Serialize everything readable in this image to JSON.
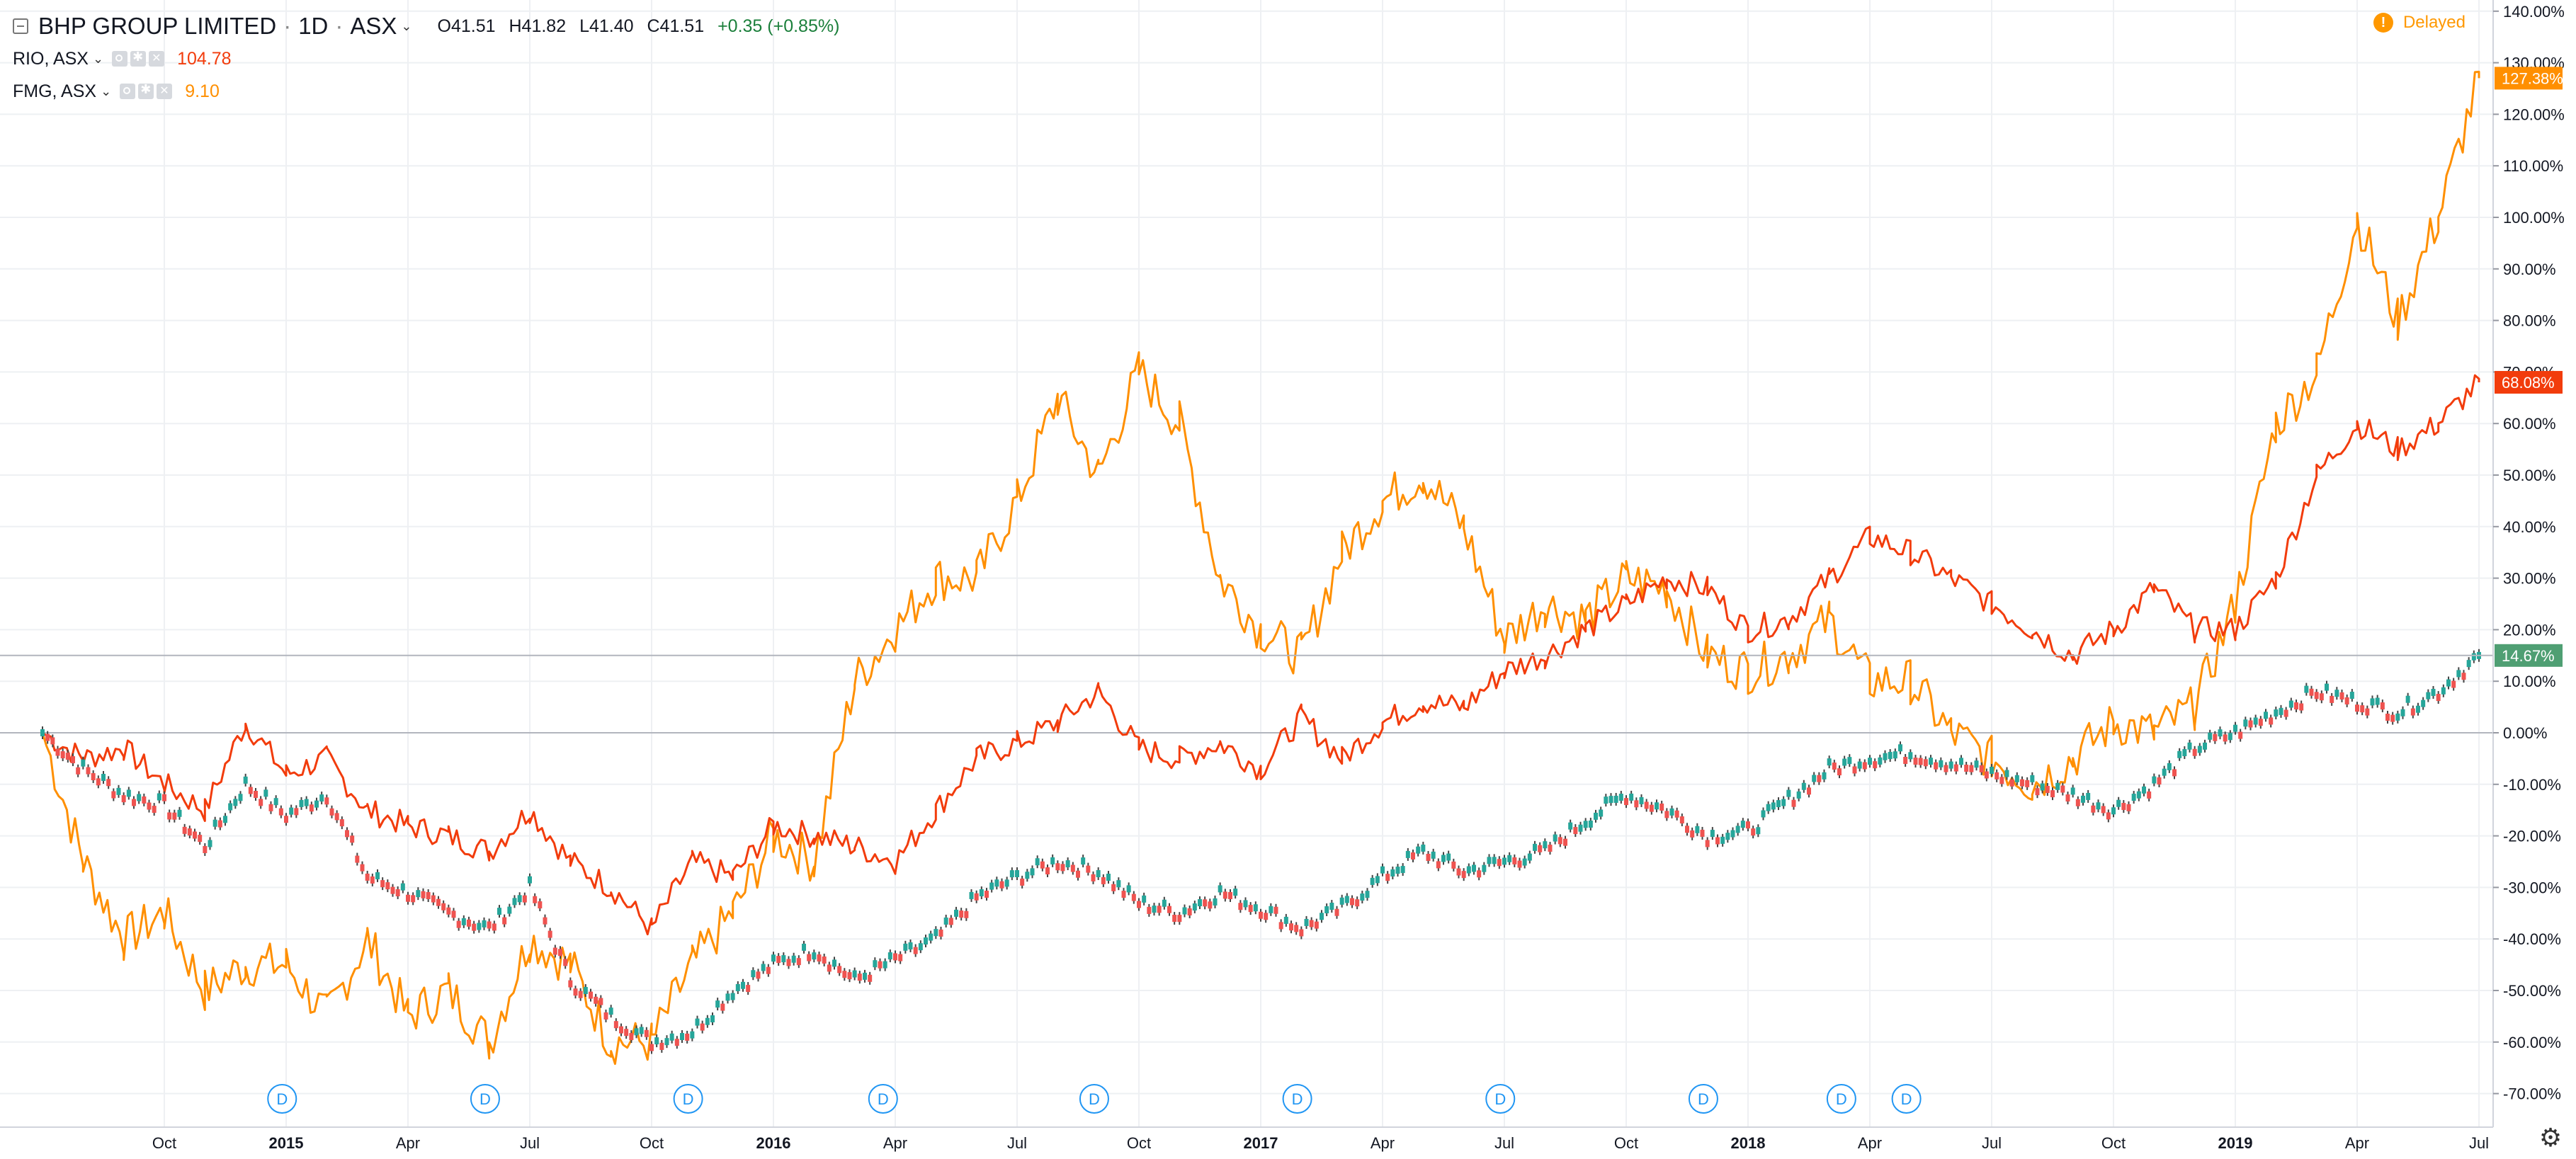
{
  "legend": {
    "main": {
      "symbol": "BHP GROUP LIMITED",
      "interval": "1D",
      "exchange": "ASX",
      "open": "O41.51",
      "high": "H41.82",
      "low": "L41.40",
      "close": "C41.51",
      "change": "+0.35 (+0.85%)"
    },
    "comparisons": [
      {
        "symbol": "RIO, ASX",
        "value": "104.78",
        "color": "#f23c0c"
      },
      {
        "symbol": "FMG, ASX",
        "value": "9.10",
        "color": "#ff8f00"
      }
    ]
  },
  "status": {
    "label": "Delayed",
    "icon": "exclamation-icon",
    "color": "#ff9800"
  },
  "settings_icon": "gear-icon",
  "chart_data": {
    "type": "line",
    "title": "",
    "xlabel": "",
    "ylabel": "",
    "ylim": [
      -75,
      142
    ],
    "x_ticks": [
      "Oct",
      "2015",
      "Apr",
      "Jul",
      "Oct",
      "2016",
      "Apr",
      "Jul",
      "Oct",
      "2017",
      "Apr",
      "Jul",
      "Oct",
      "2018",
      "Apr",
      "Jul",
      "Oct",
      "2019",
      "Apr",
      "Jul"
    ],
    "x_tick_months": [
      3,
      6,
      9,
      12,
      15,
      18,
      21,
      24,
      27,
      30,
      33,
      36,
      39,
      42,
      45,
      48,
      51,
      54,
      57,
      60
    ],
    "y_ticks": [
      "140.00%",
      "130.00%",
      "120.00%",
      "110.00%",
      "100.00%",
      "90.00%",
      "80.00%",
      "70.00%",
      "60.00%",
      "50.00%",
      "40.00%",
      "30.00%",
      "20.00%",
      "10.00%",
      "0.00%",
      "-10.00%",
      "-20.00%",
      "-30.00%",
      "-40.00%",
      "-50.00%",
      "-60.00%",
      "-70.00%"
    ],
    "y_tick_values": [
      140,
      130,
      120,
      110,
      100,
      90,
      80,
      70,
      60,
      50,
      40,
      30,
      20,
      10,
      0,
      -10,
      -20,
      -30,
      -40,
      -50,
      -60,
      -70
    ],
    "x_range_months": [
      0,
      60
    ],
    "grid": true,
    "series": [
      {
        "name": "BHP GROUP LIMITED",
        "style": "candles",
        "color": "#333333",
        "up_color": "#26a69a",
        "down_color": "#ef5350",
        "last_label": "14.67%",
        "label_color": "#4f9f73",
        "x": [
          0,
          1,
          2,
          3,
          4,
          5,
          6,
          7,
          8,
          9,
          10,
          11,
          12,
          13,
          14,
          15,
          16,
          17,
          18,
          19,
          20,
          21,
          22,
          23,
          24,
          25,
          26,
          27,
          28,
          29,
          30,
          31,
          32,
          33,
          34,
          35,
          36,
          37,
          38,
          39,
          40,
          41,
          42,
          43,
          44,
          45,
          46,
          47,
          48,
          49,
          50,
          51,
          52,
          53,
          54,
          55,
          56,
          57,
          58,
          59,
          60
        ],
        "values": [
          0,
          -7,
          -12,
          -14,
          -22,
          -10,
          -16,
          -12,
          -28,
          -31,
          -35,
          -38,
          -30,
          -48,
          -55,
          -60,
          -58,
          -50,
          -45,
          -42,
          -48,
          -44,
          -40,
          -32,
          -28,
          -25,
          -27,
          -33,
          -35,
          -31,
          -34,
          -38,
          -34,
          -28,
          -23,
          -27,
          -25,
          -23,
          -17,
          -12,
          -15,
          -20,
          -19,
          -13,
          -7,
          -5,
          -4,
          -6,
          -8,
          -10,
          -12,
          -15,
          -10,
          -3,
          0,
          4,
          8,
          6,
          4,
          8,
          15
        ]
      },
      {
        "name": "RIO, ASX",
        "style": "line",
        "color": "#f23c0c",
        "last_label": "68.08%",
        "label_color": "#f23c0c",
        "x": [
          0,
          1,
          2,
          3,
          4,
          5,
          6,
          7,
          8,
          9,
          10,
          11,
          12,
          13,
          14,
          15,
          16,
          17,
          18,
          19,
          20,
          21,
          22,
          23,
          24,
          25,
          26,
          27,
          28,
          29,
          30,
          31,
          32,
          33,
          34,
          35,
          36,
          37,
          38,
          39,
          40,
          41,
          42,
          43,
          44,
          45,
          46,
          47,
          48,
          49,
          50,
          51,
          52,
          53,
          54,
          55,
          56,
          57,
          58,
          59,
          60
        ],
        "values": [
          0,
          -5,
          -3,
          -10,
          -15,
          2,
          -8,
          -5,
          -15,
          -18,
          -20,
          -23,
          -15,
          -25,
          -30,
          -38,
          -25,
          -28,
          -18,
          -20,
          -22,
          -25,
          -15,
          -5,
          -2,
          2,
          8,
          -3,
          -5,
          -2,
          -7,
          3,
          -5,
          2,
          6,
          5,
          12,
          15,
          20,
          25,
          30,
          28,
          20,
          22,
          30,
          38,
          35,
          30,
          25,
          20,
          15,
          20,
          28,
          20,
          20,
          30,
          50,
          60,
          55,
          60,
          68
        ]
      },
      {
        "name": "FMG, ASX",
        "style": "line",
        "color": "#ff8f00",
        "last_label": "127.38%",
        "label_color": "#ff8f00",
        "x": [
          0,
          1,
          2,
          3,
          4,
          5,
          6,
          7,
          8,
          9,
          10,
          11,
          12,
          13,
          14,
          15,
          16,
          17,
          18,
          19,
          20,
          21,
          22,
          23,
          24,
          25,
          26,
          27,
          28,
          29,
          30,
          31,
          32,
          33,
          34,
          35,
          36,
          37,
          38,
          39,
          40,
          41,
          42,
          43,
          44,
          45,
          46,
          47,
          48,
          49,
          50,
          51,
          52,
          53,
          54,
          55,
          56,
          57,
          58,
          59,
          60
        ],
        "values": [
          0,
          -25,
          -40,
          -35,
          -50,
          -45,
          -45,
          -55,
          -40,
          -55,
          -50,
          -60,
          -40,
          -45,
          -60,
          -60,
          -45,
          -35,
          -20,
          -25,
          10,
          20,
          30,
          30,
          45,
          65,
          50,
          70,
          60,
          30,
          20,
          15,
          35,
          45,
          50,
          40,
          18,
          25,
          22,
          30,
          28,
          15,
          12,
          15,
          22,
          10,
          10,
          0,
          -5,
          -10,
          -5,
          2,
          0,
          5,
          25,
          60,
          70,
          100,
          80,
          100,
          127
        ]
      }
    ],
    "dividend_markers_months": [
      5.9,
      10.9,
      15.9,
      20.7,
      25.9,
      30.9,
      35.9,
      40.9,
      44.3,
      45.9
    ],
    "dividend_label": "D",
    "legend_position": "top-left"
  }
}
